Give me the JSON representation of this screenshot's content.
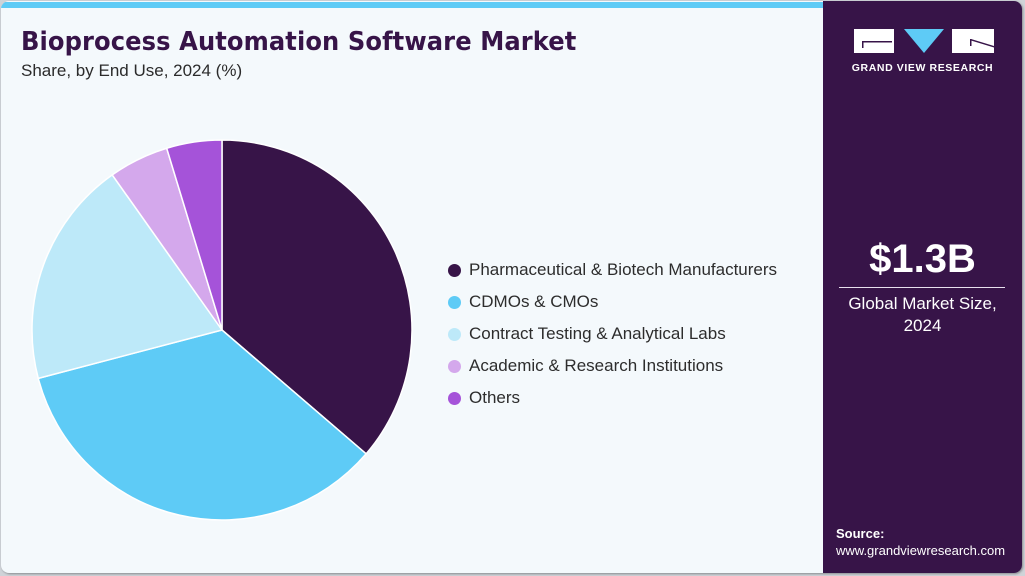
{
  "header": {
    "title": "Bioprocess Automation Software Market",
    "subtitle": "Share, by End Use, 2024 (%)"
  },
  "colors": {
    "background": "#f4f9fc",
    "accent_bar": "#5ecbf6",
    "panel": "#371448",
    "title": "#371448"
  },
  "legend": {
    "items": [
      {
        "label": "Pharmaceutical & Biotech Manufacturers",
        "color": "#371448"
      },
      {
        "label": "CDMOs & CMOs",
        "color": "#5ecbf6"
      },
      {
        "label": "Contract Testing & Analytical Labs",
        "color": "#bde9f9"
      },
      {
        "label": "Academic & Research Institutions",
        "color": "#d4a8ec"
      },
      {
        "label": "Others",
        "color": "#a553d9"
      }
    ]
  },
  "panel": {
    "logo_text": "GRAND VIEW RESEARCH",
    "market_size": "$1.3B",
    "market_label_line1": "Global Market Size,",
    "market_label_line2": "2024",
    "source_title": "Source:",
    "source_url": "www.grandviewresearch.com"
  },
  "chart_data": {
    "type": "pie",
    "title": "Bioprocess Automation Software Market",
    "subtitle": "Share, by End Use, 2024 (%)",
    "categories": [
      "Pharmaceutical & Biotech Manufacturers",
      "CDMOs & CMOs",
      "Contract Testing & Analytical Labs",
      "Academic & Research Institutions",
      "Others"
    ],
    "values": [
      36.3,
      34.6,
      19.3,
      5.1,
      4.7
    ],
    "colors": [
      "#371448",
      "#5ecbf6",
      "#bde9f9",
      "#d4a8ec",
      "#a553d9"
    ],
    "start_angle_deg": 0,
    "direction": "clockwise",
    "legend_position": "right",
    "data_labels": false
  }
}
